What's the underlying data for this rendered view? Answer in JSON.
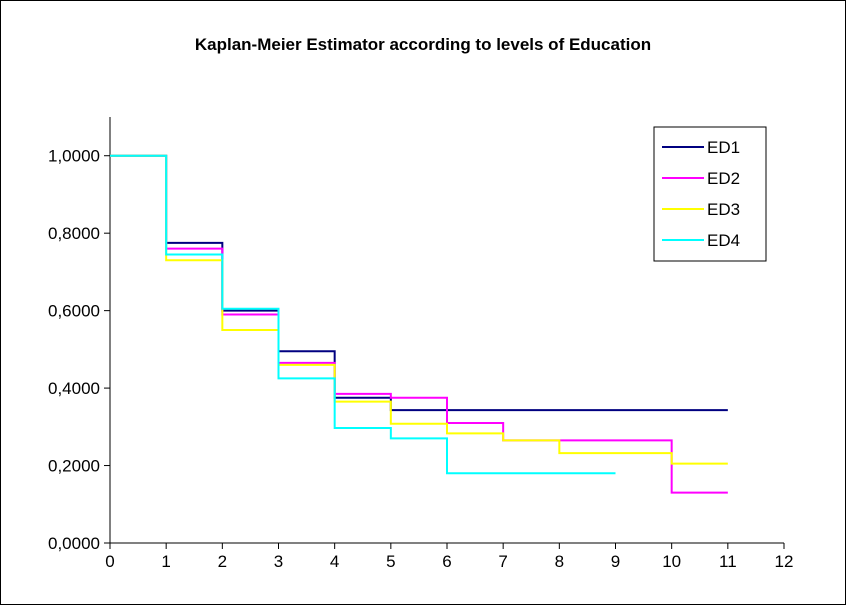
{
  "chart_data": {
    "type": "line",
    "title": "Kaplan-Meier Estimator according to levels of Education",
    "xlabel": "",
    "ylabel": "",
    "x_ticks": [
      "0",
      "1",
      "2",
      "3",
      "4",
      "5",
      "6",
      "7",
      "8",
      "9",
      "10",
      "11",
      "12"
    ],
    "y_ticks": [
      "0,0000",
      "0,2000",
      "0,4000",
      "0,6000",
      "0,8000",
      "1,0000"
    ],
    "xlim": [
      0,
      12
    ],
    "ylim": [
      0,
      1.1
    ],
    "step": true,
    "grid": false,
    "legend_position": "top-right",
    "series": [
      {
        "name": "ED1",
        "color": "#000080",
        "x": [
          0,
          1,
          2,
          3,
          4,
          5,
          6,
          7,
          8,
          9,
          10,
          11
        ],
        "y": [
          1.0,
          0.775,
          0.6,
          0.495,
          0.375,
          0.343,
          0.343,
          0.343,
          0.343,
          0.343,
          0.343,
          0.343
        ]
      },
      {
        "name": "ED2",
        "color": "#ff00ff",
        "x": [
          0,
          1,
          2,
          3,
          4,
          5,
          6,
          7,
          8,
          9,
          10,
          11
        ],
        "y": [
          1.0,
          0.76,
          0.59,
          0.465,
          0.385,
          0.375,
          0.31,
          0.265,
          0.265,
          0.265,
          0.13,
          0.13
        ]
      },
      {
        "name": "ED3",
        "color": "#ffff00",
        "x": [
          0,
          1,
          2,
          3,
          4,
          5,
          6,
          7,
          8,
          9,
          10,
          11
        ],
        "y": [
          1.0,
          0.73,
          0.55,
          0.46,
          0.365,
          0.308,
          0.283,
          0.265,
          0.232,
          0.232,
          0.205,
          0.205
        ]
      },
      {
        "name": "ED4",
        "color": "#00ffff",
        "x": [
          0,
          1,
          2,
          3,
          4,
          5,
          6,
          7,
          8,
          9
        ],
        "y": [
          1.0,
          0.745,
          0.605,
          0.425,
          0.297,
          0.27,
          0.18,
          0.18,
          0.18,
          0.18
        ]
      }
    ]
  }
}
